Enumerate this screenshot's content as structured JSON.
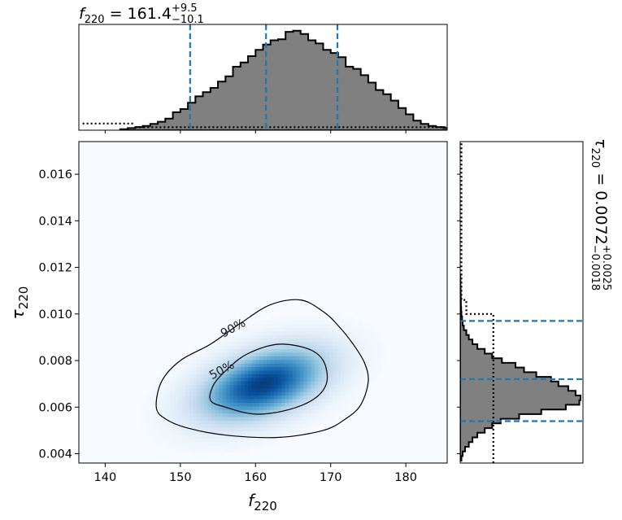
{
  "chart_data": [
    {
      "panel": "joint",
      "type": "heatmap",
      "x_var": "f",
      "x_sub": "220",
      "y_var": "τ",
      "y_sub": "220",
      "xlim": [
        136.5,
        185.5
      ],
      "ylim": [
        0.0036,
        0.0174
      ],
      "x_ticks": [
        140,
        150,
        160,
        170,
        180
      ],
      "y_ticks": [
        0.004,
        0.006,
        0.008,
        0.01,
        0.012,
        0.014,
        0.016
      ],
      "x_tick_labels": [
        "140",
        "150",
        "160",
        "170",
        "180"
      ],
      "y_tick_labels": [
        "0.004",
        "0.006",
        "0.008",
        "0.010",
        "0.012",
        "0.014",
        "0.016"
      ],
      "density_peak": {
        "x": 161.0,
        "y": 0.007
      },
      "colormap": "Blues",
      "contours": [
        {
          "label": "90%",
          "label_at": {
            "x": 157.0,
            "y": 0.0094
          },
          "points": [
            [
              146.8,
              0.006
            ],
            [
              148.0,
              0.0055
            ],
            [
              151.0,
              0.0051
            ],
            [
              156.0,
              0.0048
            ],
            [
              163.0,
              0.0047
            ],
            [
              169.0,
              0.005
            ],
            [
              172.0,
              0.0055
            ],
            [
              174.0,
              0.0061
            ],
            [
              175.0,
              0.0071
            ],
            [
              174.5,
              0.0079
            ],
            [
              173.0,
              0.0087
            ],
            [
              171.0,
              0.0095
            ],
            [
              169.0,
              0.0101
            ],
            [
              166.0,
              0.0106
            ],
            [
              162.0,
              0.0104
            ],
            [
              158.0,
              0.0096
            ],
            [
              154.0,
              0.0087
            ],
            [
              150.0,
              0.008
            ],
            [
              147.5,
              0.0071
            ]
          ]
        },
        {
          "label": "50%",
          "label_at": {
            "x": 155.5,
            "y": 0.0076
          },
          "points": [
            [
              154.0,
              0.0063
            ],
            [
              156.0,
              0.006
            ],
            [
              160.0,
              0.0057
            ],
            [
              164.5,
              0.0059
            ],
            [
              168.0,
              0.0064
            ],
            [
              169.5,
              0.0071
            ],
            [
              169.0,
              0.008
            ],
            [
              167.0,
              0.0085
            ],
            [
              163.0,
              0.0087
            ],
            [
              159.0,
              0.0083
            ],
            [
              156.5,
              0.0077
            ],
            [
              154.5,
              0.007
            ]
          ]
        }
      ]
    },
    {
      "panel": "marginal-x",
      "type": "histogram",
      "title_var": "f",
      "title_sub": "220",
      "title_mid": " = 161.4",
      "title_plus": "+9.5",
      "title_minus": "−10.1",
      "bin_start": 142.0,
      "bin_width": 1.0,
      "values": [
        0.01,
        0.02,
        0.03,
        0.04,
        0.06,
        0.08,
        0.11,
        0.17,
        0.2,
        0.26,
        0.32,
        0.36,
        0.4,
        0.46,
        0.51,
        0.6,
        0.64,
        0.7,
        0.76,
        0.81,
        0.85,
        0.86,
        0.93,
        0.94,
        0.91,
        0.85,
        0.82,
        0.76,
        0.73,
        0.69,
        0.6,
        0.58,
        0.52,
        0.45,
        0.38,
        0.34,
        0.28,
        0.21,
        0.15,
        0.09,
        0.06,
        0.04,
        0.03,
        0.02,
        0.01,
        0.01
      ],
      "ylim": [
        0,
        1.0
      ],
      "prior": [
        {
          "x": [
            137,
            144
          ],
          "y": 0.063
        },
        {
          "x": [
            144,
            186
          ],
          "y": 0.028
        }
      ],
      "quantiles": [
        151.3,
        161.4,
        170.9
      ]
    },
    {
      "panel": "marginal-y",
      "type": "histogram",
      "orientation": "horizontal",
      "title_var": "τ",
      "title_sub": "220",
      "title_mid": " = 0.0072",
      "title_plus": "+0.0025",
      "title_minus": "−0.0018",
      "bin_start": 0.0037,
      "bin_width": 0.0002,
      "values": [
        0.01,
        0.02,
        0.04,
        0.07,
        0.1,
        0.14,
        0.2,
        0.26,
        0.33,
        0.48,
        0.66,
        0.86,
        0.97,
        0.98,
        0.94,
        0.88,
        0.8,
        0.74,
        0.62,
        0.52,
        0.45,
        0.34,
        0.26,
        0.2,
        0.14,
        0.1,
        0.07,
        0.05,
        0.03,
        0.02,
        0.015,
        0.01,
        0.008,
        0.006,
        0.005,
        0.004,
        0.003,
        0.002,
        0.002,
        0.001
      ],
      "xlim": [
        0,
        1.0
      ],
      "prior": [
        {
          "y": [
            0.0036,
            0.01
          ],
          "x": 0.27
        },
        {
          "y": [
            0.01,
            0.0106
          ],
          "x": 0.05
        },
        {
          "y": [
            0.0106,
            0.0174
          ],
          "x": 0.01
        }
      ],
      "quantiles": [
        0.0054,
        0.0072,
        0.0097
      ]
    }
  ]
}
